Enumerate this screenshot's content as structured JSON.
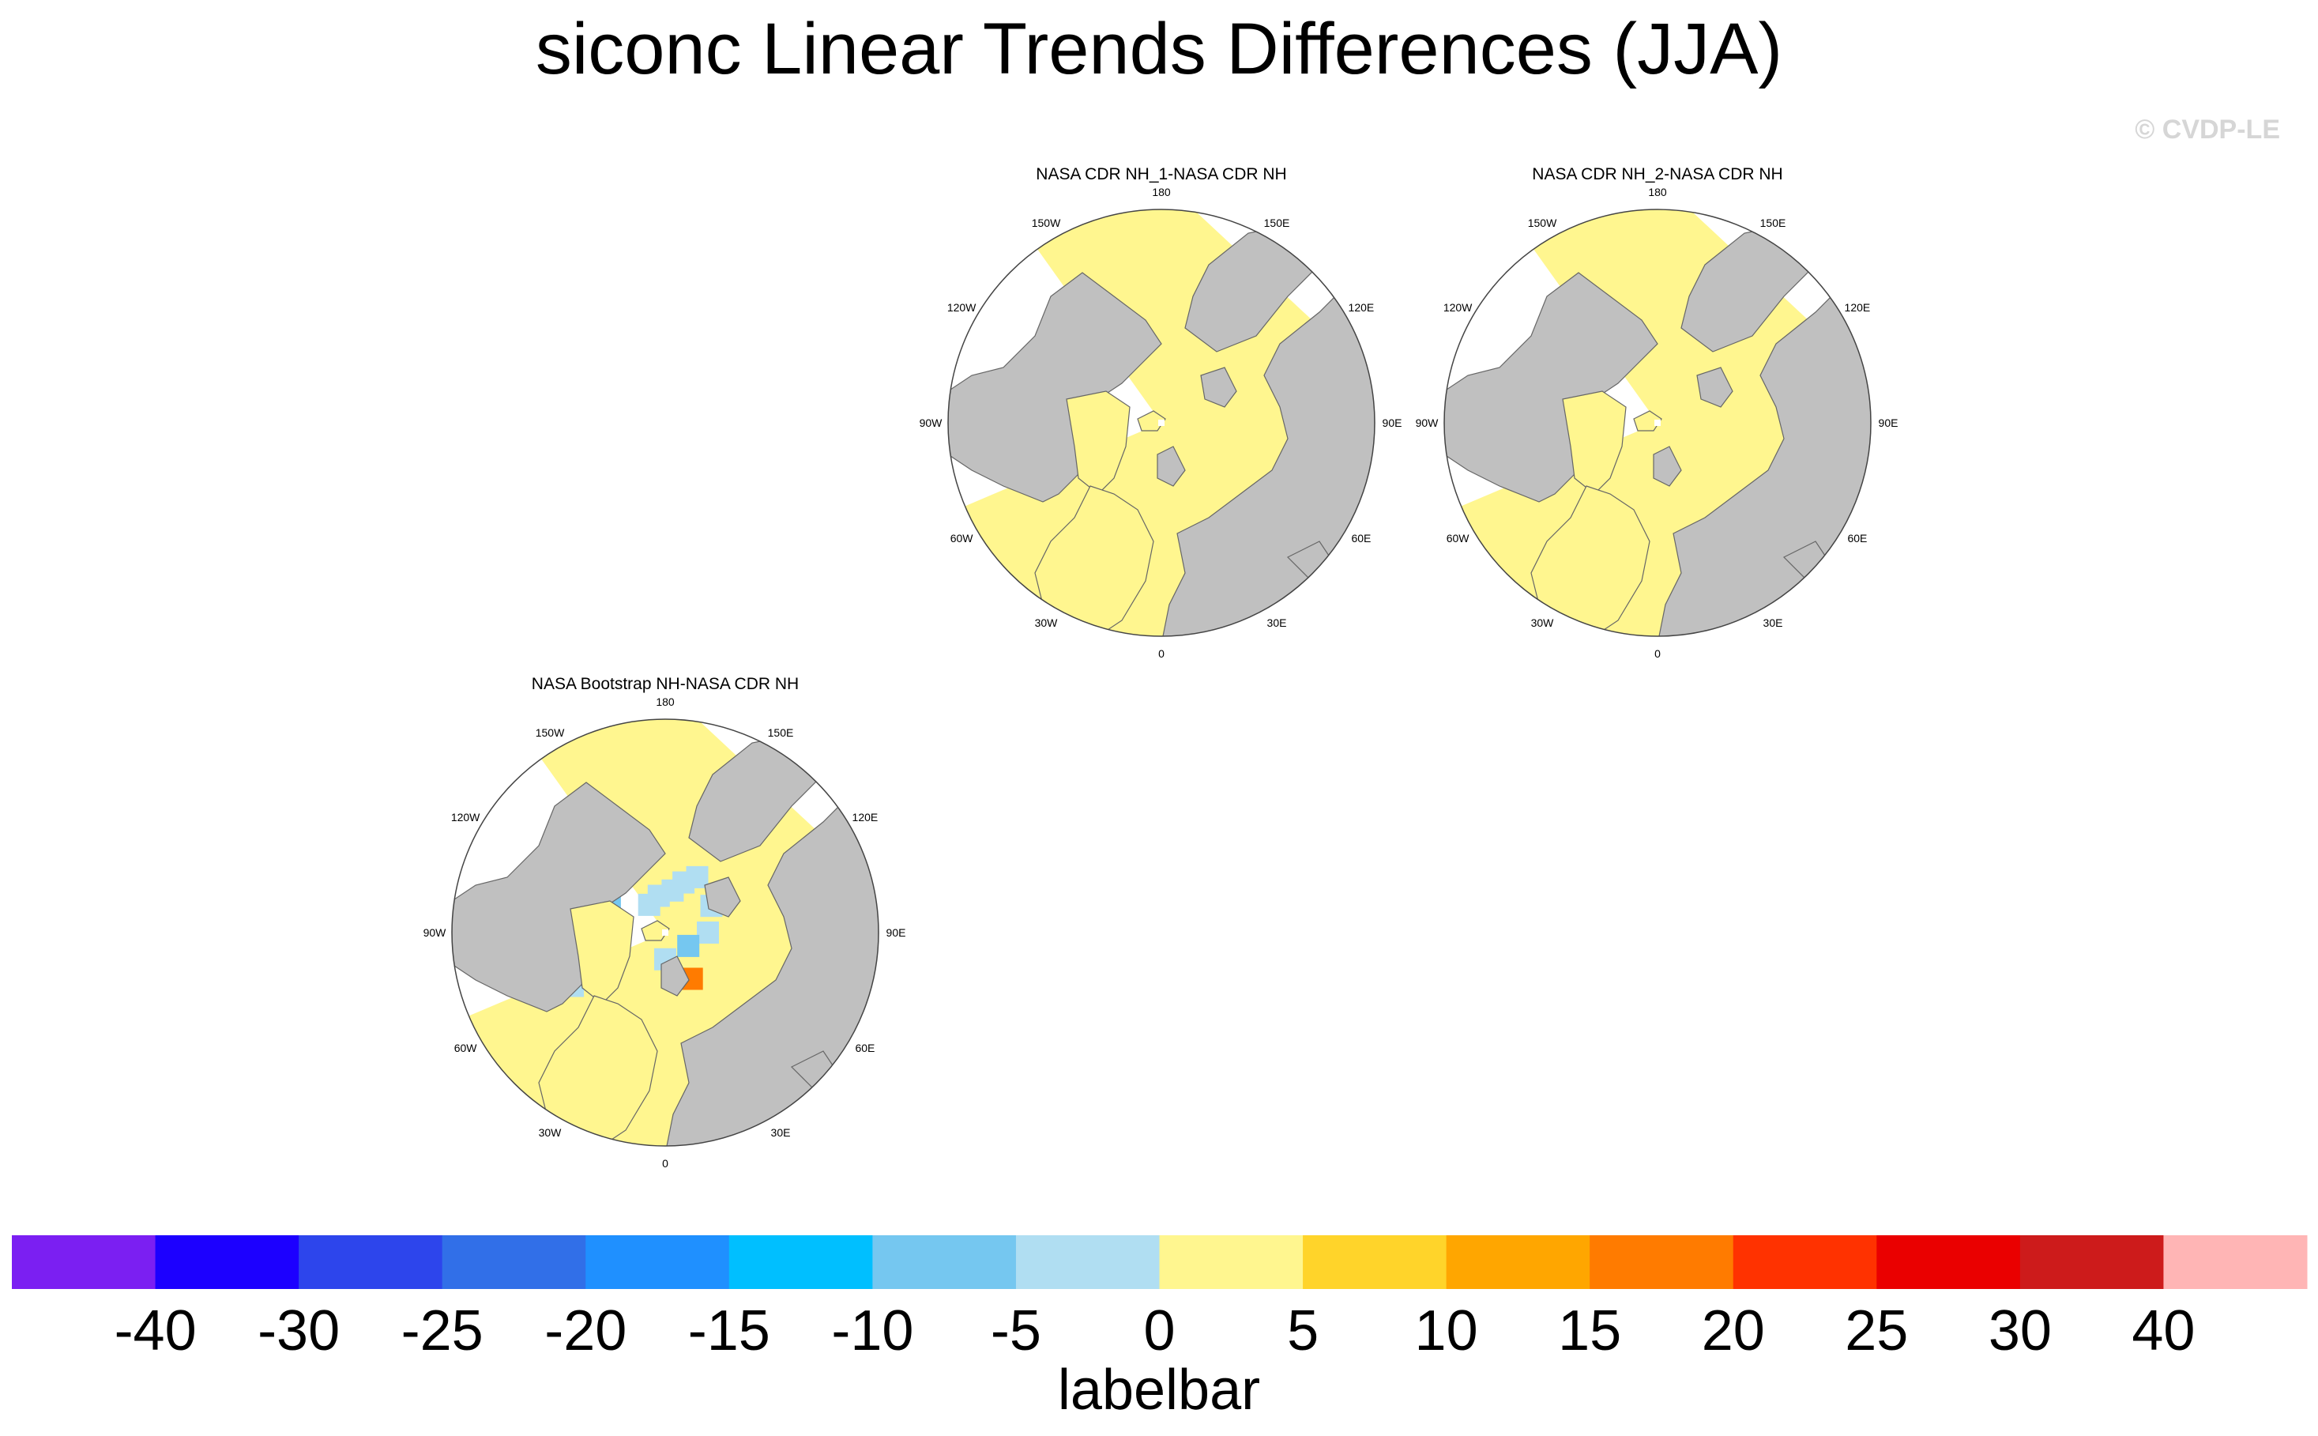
{
  "figure": {
    "title": "siconc Linear Trends Differences (JJA)",
    "copyright": "© CVDP-LE"
  },
  "chart_data": {
    "type": "heatmap",
    "projection": "north-polar-stereographic",
    "variable": "siconc",
    "season": "JJA",
    "longitude_labels": [
      "180",
      "150E",
      "120E",
      "90E",
      "60E",
      "30E",
      "0",
      "30W",
      "60W",
      "90W",
      "120W",
      "150W"
    ],
    "panels": [
      {
        "title": "NASA CDR NH_1-NASA CDR NH",
        "dominant_bin": "0 to 5",
        "ocean_color": "#fff68f",
        "anomaly_cells": []
      },
      {
        "title": "NASA CDR NH_2-NASA CDR NH",
        "dominant_bin": "0 to 5",
        "ocean_color": "#fff68f",
        "anomaly_cells": []
      },
      {
        "title": "NASA Bootstrap NH-NASA CDR NH",
        "dominant_bin": "0 to 5",
        "ocean_color": "#fff68f",
        "anomaly_cells": [
          {
            "lon": 150,
            "lat": 78,
            "bin": "-5 to 0"
          },
          {
            "lon": 160,
            "lat": 80,
            "bin": "-5 to 0"
          },
          {
            "lon": 170,
            "lat": 82,
            "bin": "-5 to 0"
          },
          {
            "lon": -170,
            "lat": 83,
            "bin": "-5 to 0"
          },
          {
            "lon": -150,
            "lat": 84,
            "bin": "-5 to 0"
          },
          {
            "lon": -120,
            "lat": 78,
            "bin": "-10 to -5"
          },
          {
            "lon": -100,
            "lat": 75,
            "bin": "-5 to 0"
          },
          {
            "lon": -90,
            "lat": 80,
            "bin": "-10 to -5"
          },
          {
            "lon": -75,
            "lat": 60,
            "bin": "-10 to -5"
          },
          {
            "lon": -60,
            "lat": 70,
            "bin": "-5 to 0"
          },
          {
            "lon": 30,
            "lat": 80,
            "bin": "15 to 20"
          },
          {
            "lon": 90,
            "lat": 82,
            "bin": "-5 to 0"
          },
          {
            "lon": 120,
            "lat": 80,
            "bin": "-5 to 0"
          },
          {
            "lon": 0,
            "lat": 85,
            "bin": "-5 to 0"
          },
          {
            "lon": 60,
            "lat": 85,
            "bin": "-10 to -5"
          }
        ]
      }
    ],
    "colorbar": {
      "title": "labelbar",
      "tick_labels": [
        "-40",
        "-30",
        "-25",
        "-20",
        "-15",
        "-10",
        "-5",
        "0",
        "5",
        "10",
        "15",
        "20",
        "25",
        "30",
        "40"
      ],
      "levels": [
        -40,
        -30,
        -25,
        -20,
        -15,
        -10,
        -5,
        0,
        5,
        10,
        15,
        20,
        25,
        30,
        40
      ],
      "colors": [
        "#7b1ff2",
        "#1c00ff",
        "#2d45ec",
        "#316fe8",
        "#1f90ff",
        "#00bfff",
        "#75c7f0",
        "#b0def2",
        "#fff68f",
        "#ffd42a",
        "#ffa600",
        "#ff7b00",
        "#ff3200",
        "#ea0000",
        "#cd1b1b",
        "#ffb5b5"
      ]
    }
  },
  "colors": {
    "land": "#c0c0c0",
    "coast": "#555555"
  }
}
